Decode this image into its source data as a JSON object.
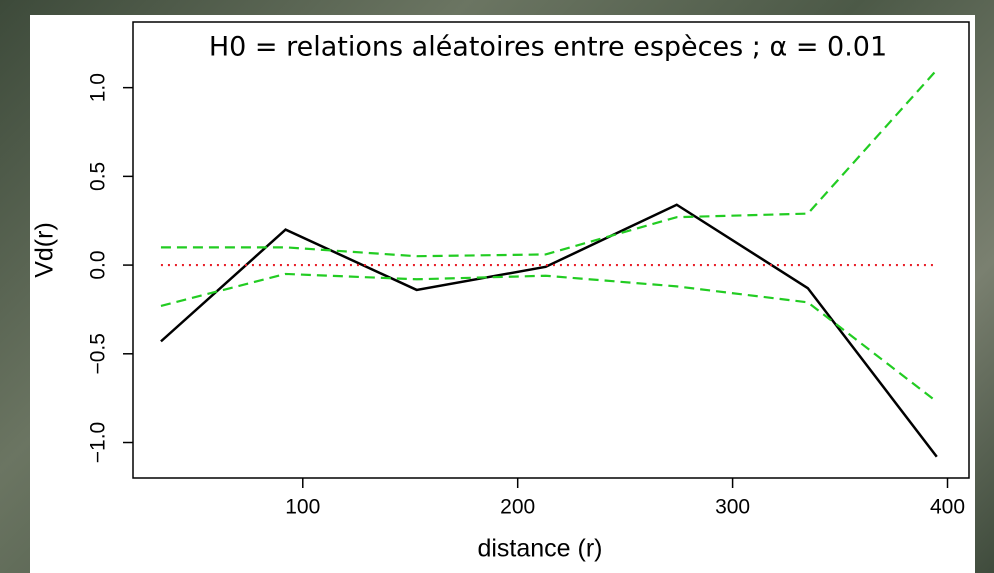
{
  "chart_data": {
    "type": "line",
    "annotation": "H0 = relations aléatoires entre espèces ; α = 0.01",
    "xlabel": "distance (r)",
    "ylabel": "Vd(r)",
    "x": [
      34,
      92,
      153,
      213,
      274,
      335,
      395
    ],
    "series": [
      {
        "color": "#000000",
        "style": "solid",
        "values": [
          -0.43,
          0.2,
          -0.14,
          -0.01,
          0.34,
          -0.13,
          -1.08
        ]
      },
      {
        "color": "#22cc22",
        "style": "dashed",
        "values": [
          0.1,
          0.1,
          0.05,
          0.06,
          0.27,
          0.29,
          1.1
        ]
      },
      {
        "color": "#22cc22",
        "style": "dashed",
        "values": [
          -0.23,
          -0.05,
          -0.08,
          -0.06,
          -0.12,
          -0.21,
          -0.77
        ]
      },
      {
        "color": "#e8202a",
        "style": "dotted",
        "values": [
          0,
          0,
          0,
          0,
          0,
          0,
          0
        ]
      }
    ],
    "xlim": [
      21,
      410
    ],
    "ylim": [
      -1.2,
      1.37
    ],
    "xticks": [
      100,
      200,
      300,
      400
    ],
    "yticks": [
      {
        "value": -1,
        "label": "−1.0"
      },
      {
        "value": -0.5,
        "label": "−0.5"
      },
      {
        "value": 0,
        "label": "0.0"
      },
      {
        "value": 0.5,
        "label": "0.5"
      },
      {
        "value": 1,
        "label": "1.0"
      }
    ]
  }
}
